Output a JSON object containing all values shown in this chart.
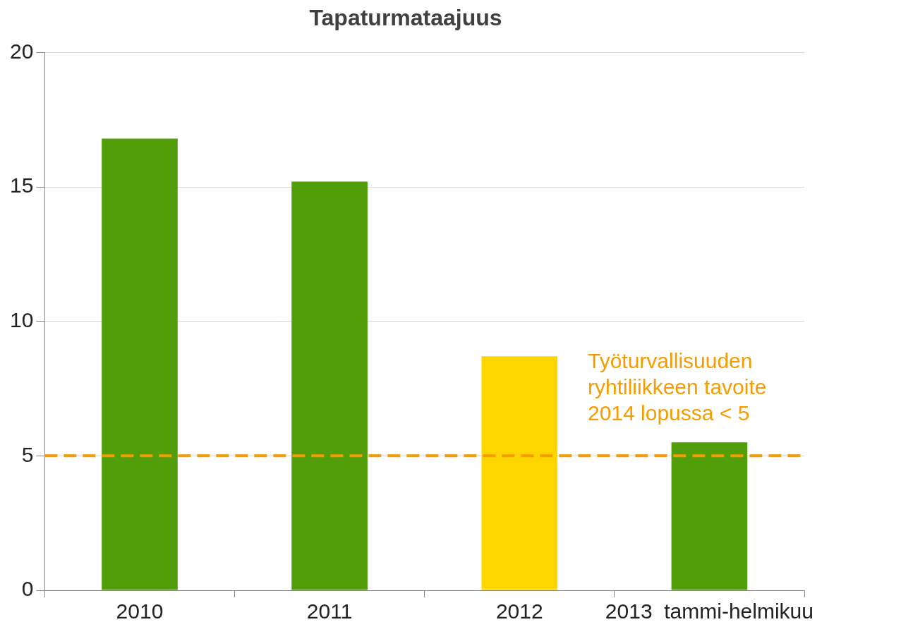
{
  "chart_data": {
    "type": "bar",
    "title": "Tapaturmataajuus",
    "categories": [
      "2010",
      "2011",
      "2012",
      "2013  tammi-helmikuu"
    ],
    "values": [
      16.8,
      15.2,
      8.7,
      5.5
    ],
    "colors": [
      "#519e0a",
      "#519e0a",
      "#ffd500",
      "#519e0a"
    ],
    "ylim": [
      0,
      20
    ],
    "yticks": [
      0,
      5,
      10,
      15,
      20
    ],
    "grid": "y",
    "ref_lines": [
      {
        "axis": "y",
        "value": 5,
        "label": "Työturvallisuuden ryhtiliikkeen tavoite 2014 lopussa < 5",
        "color": "#f59c00",
        "line_style": "dashed"
      }
    ]
  }
}
